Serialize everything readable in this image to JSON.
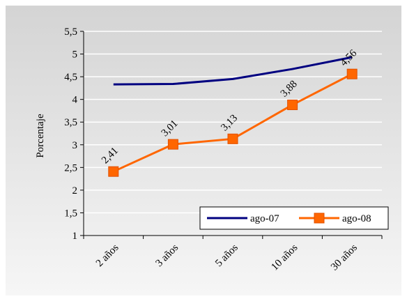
{
  "chart_data": {
    "type": "line",
    "title": "",
    "xlabel": "",
    "ylabel": "Porcentaje",
    "ylim": [
      1,
      5.5
    ],
    "y_ticks": [
      "1",
      "1,5",
      "2",
      "2,5",
      "3",
      "3,5",
      "4",
      "4,5",
      "5",
      "5,5"
    ],
    "y_tick_values": [
      1,
      1.5,
      2,
      2.5,
      3,
      3.5,
      4,
      4.5,
      5,
      5.5
    ],
    "categories": [
      "2 años",
      "3 años",
      "5 años",
      "10 años",
      "30 años"
    ],
    "grid": "horizontal",
    "legend_position": "bottom-right",
    "series": [
      {
        "name": "ago-07",
        "color": "#000080",
        "marker": "none",
        "values": [
          4.33,
          4.34,
          4.45,
          4.67,
          4.93
        ]
      },
      {
        "name": "ago-08",
        "color": "#FF6600",
        "marker": "square",
        "values": [
          2.41,
          3.01,
          3.13,
          3.88,
          4.56
        ],
        "data_labels": [
          "2,41",
          "3,01",
          "3,13",
          "3,88",
          "4,56"
        ]
      }
    ],
    "background": "#C0C0C0",
    "plot_background_gradient": [
      "#E8E8E8",
      "#FFFFFF"
    ]
  }
}
